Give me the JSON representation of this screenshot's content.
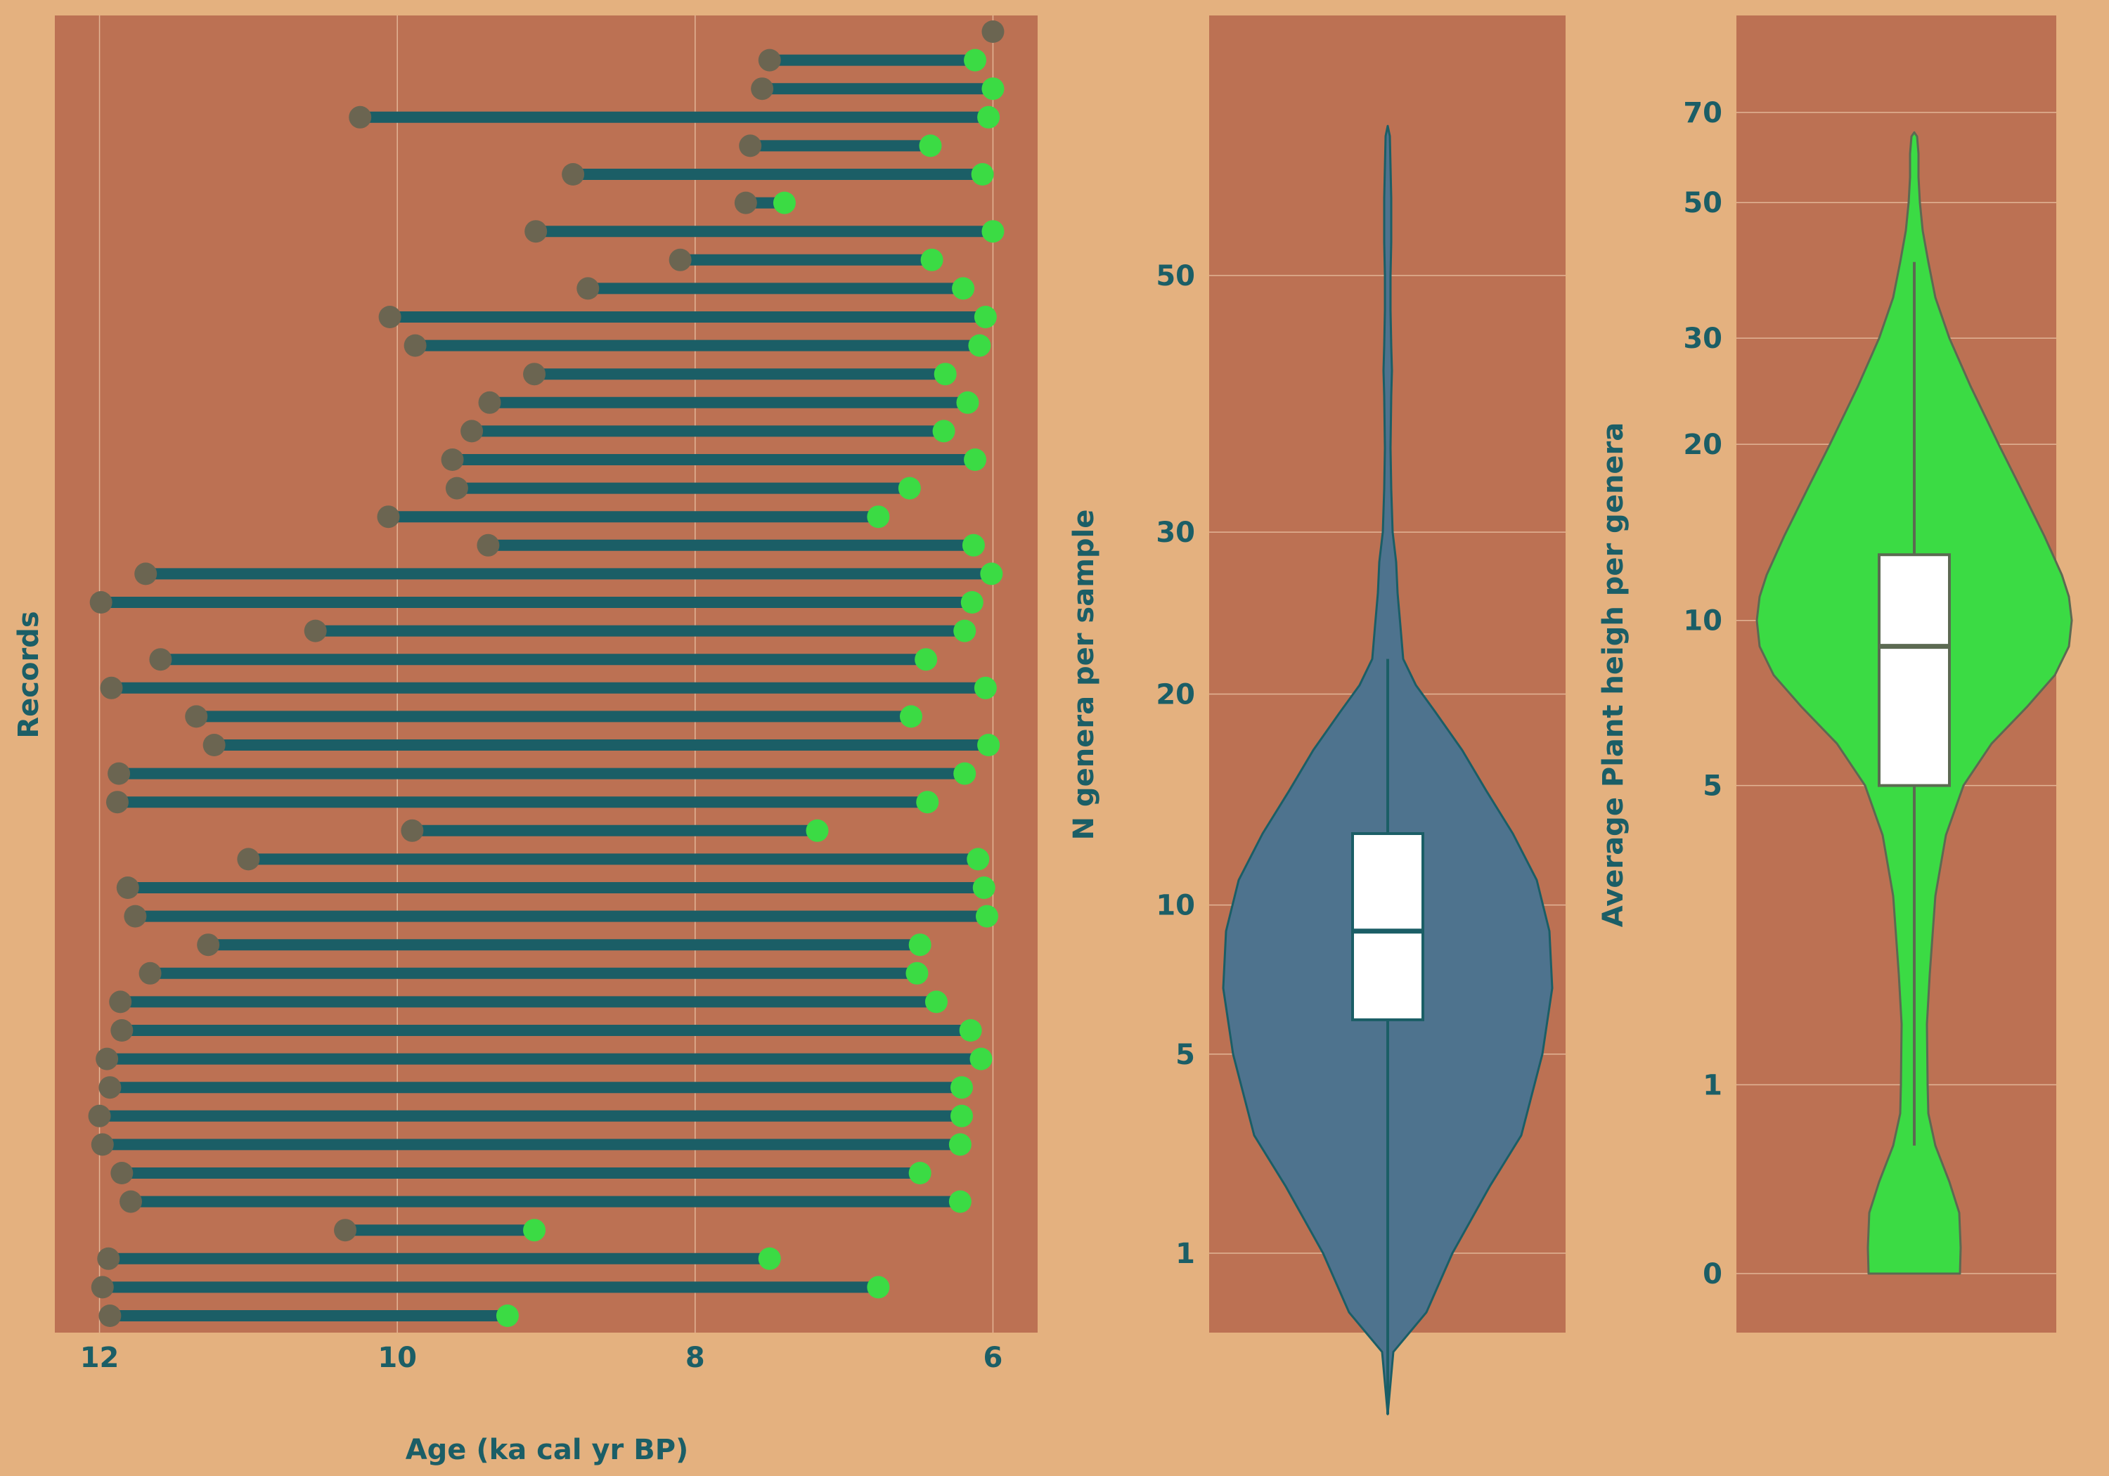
{
  "colors": {
    "page_background": "#E4B17F",
    "panel_background": "#BC7153",
    "gridline": "#E2B596",
    "segment": "#1B5E66",
    "start_marker": "#6B6551",
    "end_marker": "#3BDB44",
    "text": "#1B5E66",
    "violin_genera_fill": "#4E738E",
    "violin_height_fill": "#3BDB44",
    "violin_height_outline": "#5C6A52",
    "box_fill": "#FFFFFF"
  },
  "chart_data": [
    {
      "type": "dumbbell",
      "ylabel": "Records",
      "xlabel": "Age (ka cal yr BP)",
      "x_ticks": [
        "12",
        "10",
        "8",
        "6"
      ],
      "xlim": [
        12.3,
        5.7
      ],
      "x_reversed": true,
      "grid": true,
      "records": [
        {
          "start": 6.0,
          "end": 6.0
        },
        {
          "start": 7.5,
          "end": 6.12
        },
        {
          "start": 7.55,
          "end": 6.0
        },
        {
          "start": 10.25,
          "end": 6.03
        },
        {
          "start": 7.63,
          "end": 6.42
        },
        {
          "start": 8.82,
          "end": 6.07
        },
        {
          "start": 7.66,
          "end": 7.4
        },
        {
          "start": 9.07,
          "end": 6.0
        },
        {
          "start": 8.1,
          "end": 6.41
        },
        {
          "start": 8.72,
          "end": 6.2
        },
        {
          "start": 10.05,
          "end": 6.05
        },
        {
          "start": 9.88,
          "end": 6.09
        },
        {
          "start": 9.08,
          "end": 6.32
        },
        {
          "start": 9.38,
          "end": 6.17
        },
        {
          "start": 9.5,
          "end": 6.33
        },
        {
          "start": 9.63,
          "end": 6.12
        },
        {
          "start": 9.6,
          "end": 6.56
        },
        {
          "start": 10.06,
          "end": 6.77
        },
        {
          "start": 9.39,
          "end": 6.13
        },
        {
          "start": 11.69,
          "end": 6.01
        },
        {
          "start": 11.99,
          "end": 6.14
        },
        {
          "start": 10.55,
          "end": 6.19
        },
        {
          "start": 11.59,
          "end": 6.45
        },
        {
          "start": 11.92,
          "end": 6.05
        },
        {
          "start": 11.35,
          "end": 6.55
        },
        {
          "start": 11.23,
          "end": 6.03
        },
        {
          "start": 11.87,
          "end": 6.19
        },
        {
          "start": 11.88,
          "end": 6.44
        },
        {
          "start": 9.9,
          "end": 7.18
        },
        {
          "start": 11.0,
          "end": 6.1
        },
        {
          "start": 11.81,
          "end": 6.06
        },
        {
          "start": 11.76,
          "end": 6.04
        },
        {
          "start": 11.27,
          "end": 6.49
        },
        {
          "start": 11.66,
          "end": 6.51
        },
        {
          "start": 11.86,
          "end": 6.38
        },
        {
          "start": 11.85,
          "end": 6.15
        },
        {
          "start": 11.95,
          "end": 6.08
        },
        {
          "start": 11.93,
          "end": 6.21
        },
        {
          "start": 12.0,
          "end": 6.21
        },
        {
          "start": 11.98,
          "end": 6.22
        },
        {
          "start": 11.85,
          "end": 6.49
        },
        {
          "start": 11.79,
          "end": 6.22
        },
        {
          "start": 10.35,
          "end": 9.08
        },
        {
          "start": 11.94,
          "end": 7.5
        },
        {
          "start": 11.98,
          "end": 6.77
        },
        {
          "start": 11.93,
          "end": 9.26
        }
      ]
    },
    {
      "type": "violin",
      "ylabel": "N genera per sample",
      "y_ticks": [
        "1",
        "5",
        "10",
        "20",
        "30",
        "50"
      ],
      "y_tick_values": [
        1,
        5,
        10,
        20,
        30,
        50
      ],
      "y_scale": "square-root",
      "grid": true,
      "distribution": {
        "min": 0,
        "q1": 6,
        "median": 9,
        "q3": 13,
        "max": 64,
        "whisker_low": 0,
        "whisker_high": 22
      }
    },
    {
      "type": "violin",
      "ylabel": "Average Plant heigh per genera",
      "y_ticks": [
        "0",
        "1",
        "5",
        "10",
        "20",
        "30",
        "50",
        "70"
      ],
      "y_tick_values": [
        0,
        1,
        5,
        10,
        20,
        30,
        50,
        70
      ],
      "y_scale": "log(1+y)",
      "grid": true,
      "distribution": {
        "min": 0,
        "q1": 5,
        "median": 9,
        "q3": 13,
        "max": 64,
        "whisker_low": 0.6,
        "whisker_high": 40
      }
    }
  ]
}
